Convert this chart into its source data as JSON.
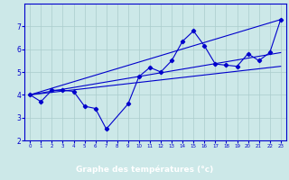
{
  "xlabel": "Graphe des températures (°c)",
  "xlim": [
    -0.5,
    23.5
  ],
  "ylim": [
    2,
    8
  ],
  "xticks": [
    0,
    1,
    2,
    3,
    4,
    5,
    6,
    7,
    8,
    9,
    10,
    11,
    12,
    13,
    14,
    15,
    16,
    17,
    18,
    19,
    20,
    21,
    22,
    23
  ],
  "yticks": [
    2,
    3,
    4,
    5,
    6,
    7
  ],
  "bg_color": "#cce8e8",
  "line_color": "#0000cc",
  "grid_color": "#aacccc",
  "xlabel_bg": "#0000aa",
  "xlabel_fg": "#ffffff",
  "line1_x": [
    0,
    1,
    2,
    3,
    4,
    5,
    6,
    7,
    9,
    10,
    11,
    12,
    13,
    14,
    15,
    16,
    17,
    18,
    19,
    20,
    21,
    22,
    23
  ],
  "line1_y": [
    4.0,
    3.7,
    4.2,
    4.2,
    4.15,
    3.5,
    3.4,
    2.5,
    3.6,
    4.8,
    5.2,
    5.0,
    5.5,
    6.35,
    6.8,
    6.15,
    5.35,
    5.3,
    5.25,
    5.8,
    5.5,
    5.85,
    7.3
  ],
  "line2_x": [
    0,
    23
  ],
  "line2_y": [
    4.0,
    7.3
  ],
  "line3_x": [
    0,
    23
  ],
  "line3_y": [
    4.0,
    5.25
  ],
  "line4_x": [
    0,
    23
  ],
  "line4_y": [
    4.0,
    5.85
  ]
}
